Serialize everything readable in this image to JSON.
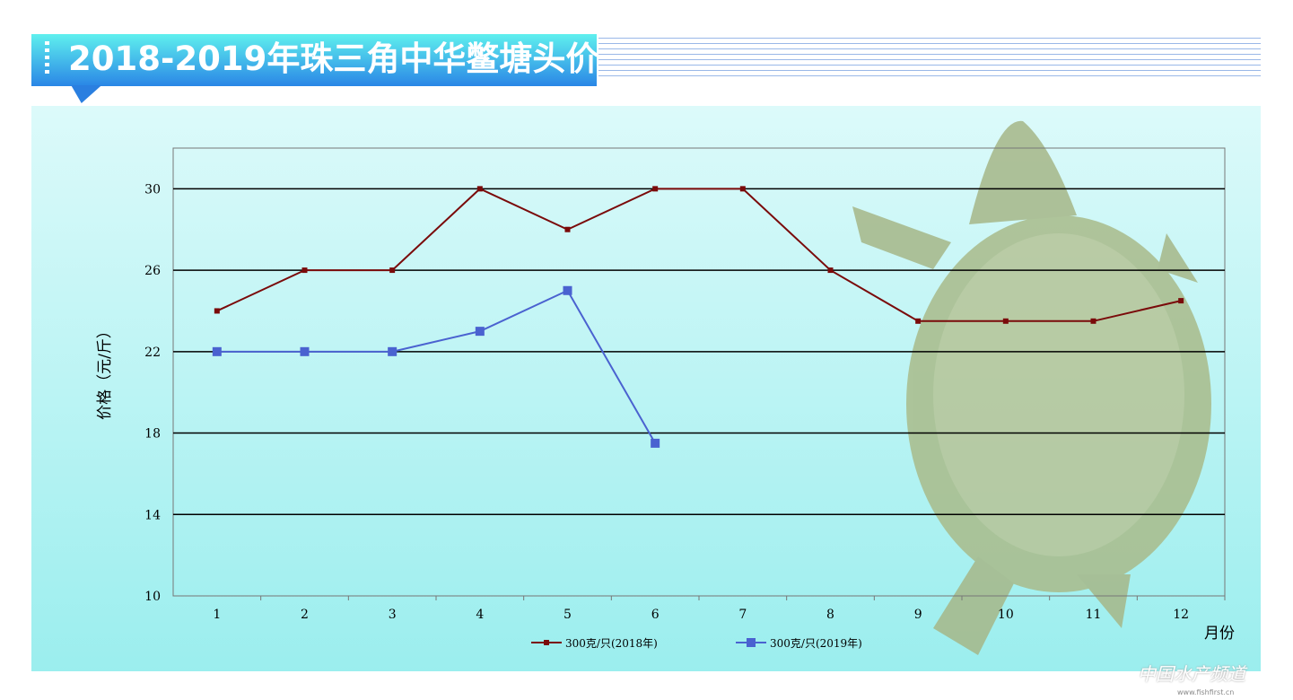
{
  "title": "2018-2019年珠三角中华鳖塘头价",
  "watermark": {
    "name": "中国水产频道",
    "url": "www.fishfirst.cn"
  },
  "chart_data": {
    "type": "line",
    "title": "2018-2019年珠三角中华鳖塘头价",
    "xlabel": "月份",
    "ylabel": "价格（元/斤）",
    "categories": [
      "1",
      "2",
      "3",
      "4",
      "5",
      "6",
      "7",
      "8",
      "9",
      "10",
      "11",
      "12"
    ],
    "ylim": [
      10,
      32
    ],
    "yticks": [
      10,
      14,
      18,
      22,
      26,
      30
    ],
    "grid": true,
    "legend_position": "bottom",
    "series": [
      {
        "name": "300克/只(2018年)",
        "color": "#7a0a0a",
        "marker": "square-small",
        "values": [
          24,
          26,
          26,
          30,
          28,
          30,
          30,
          26,
          23.5,
          23.5,
          23.5,
          24.5
        ]
      },
      {
        "name": "300克/只(2019年)",
        "color": "#4a62d0",
        "marker": "square",
        "values": [
          22,
          22,
          22,
          23,
          25,
          17.5,
          null,
          null,
          null,
          null,
          null,
          null
        ]
      }
    ]
  }
}
